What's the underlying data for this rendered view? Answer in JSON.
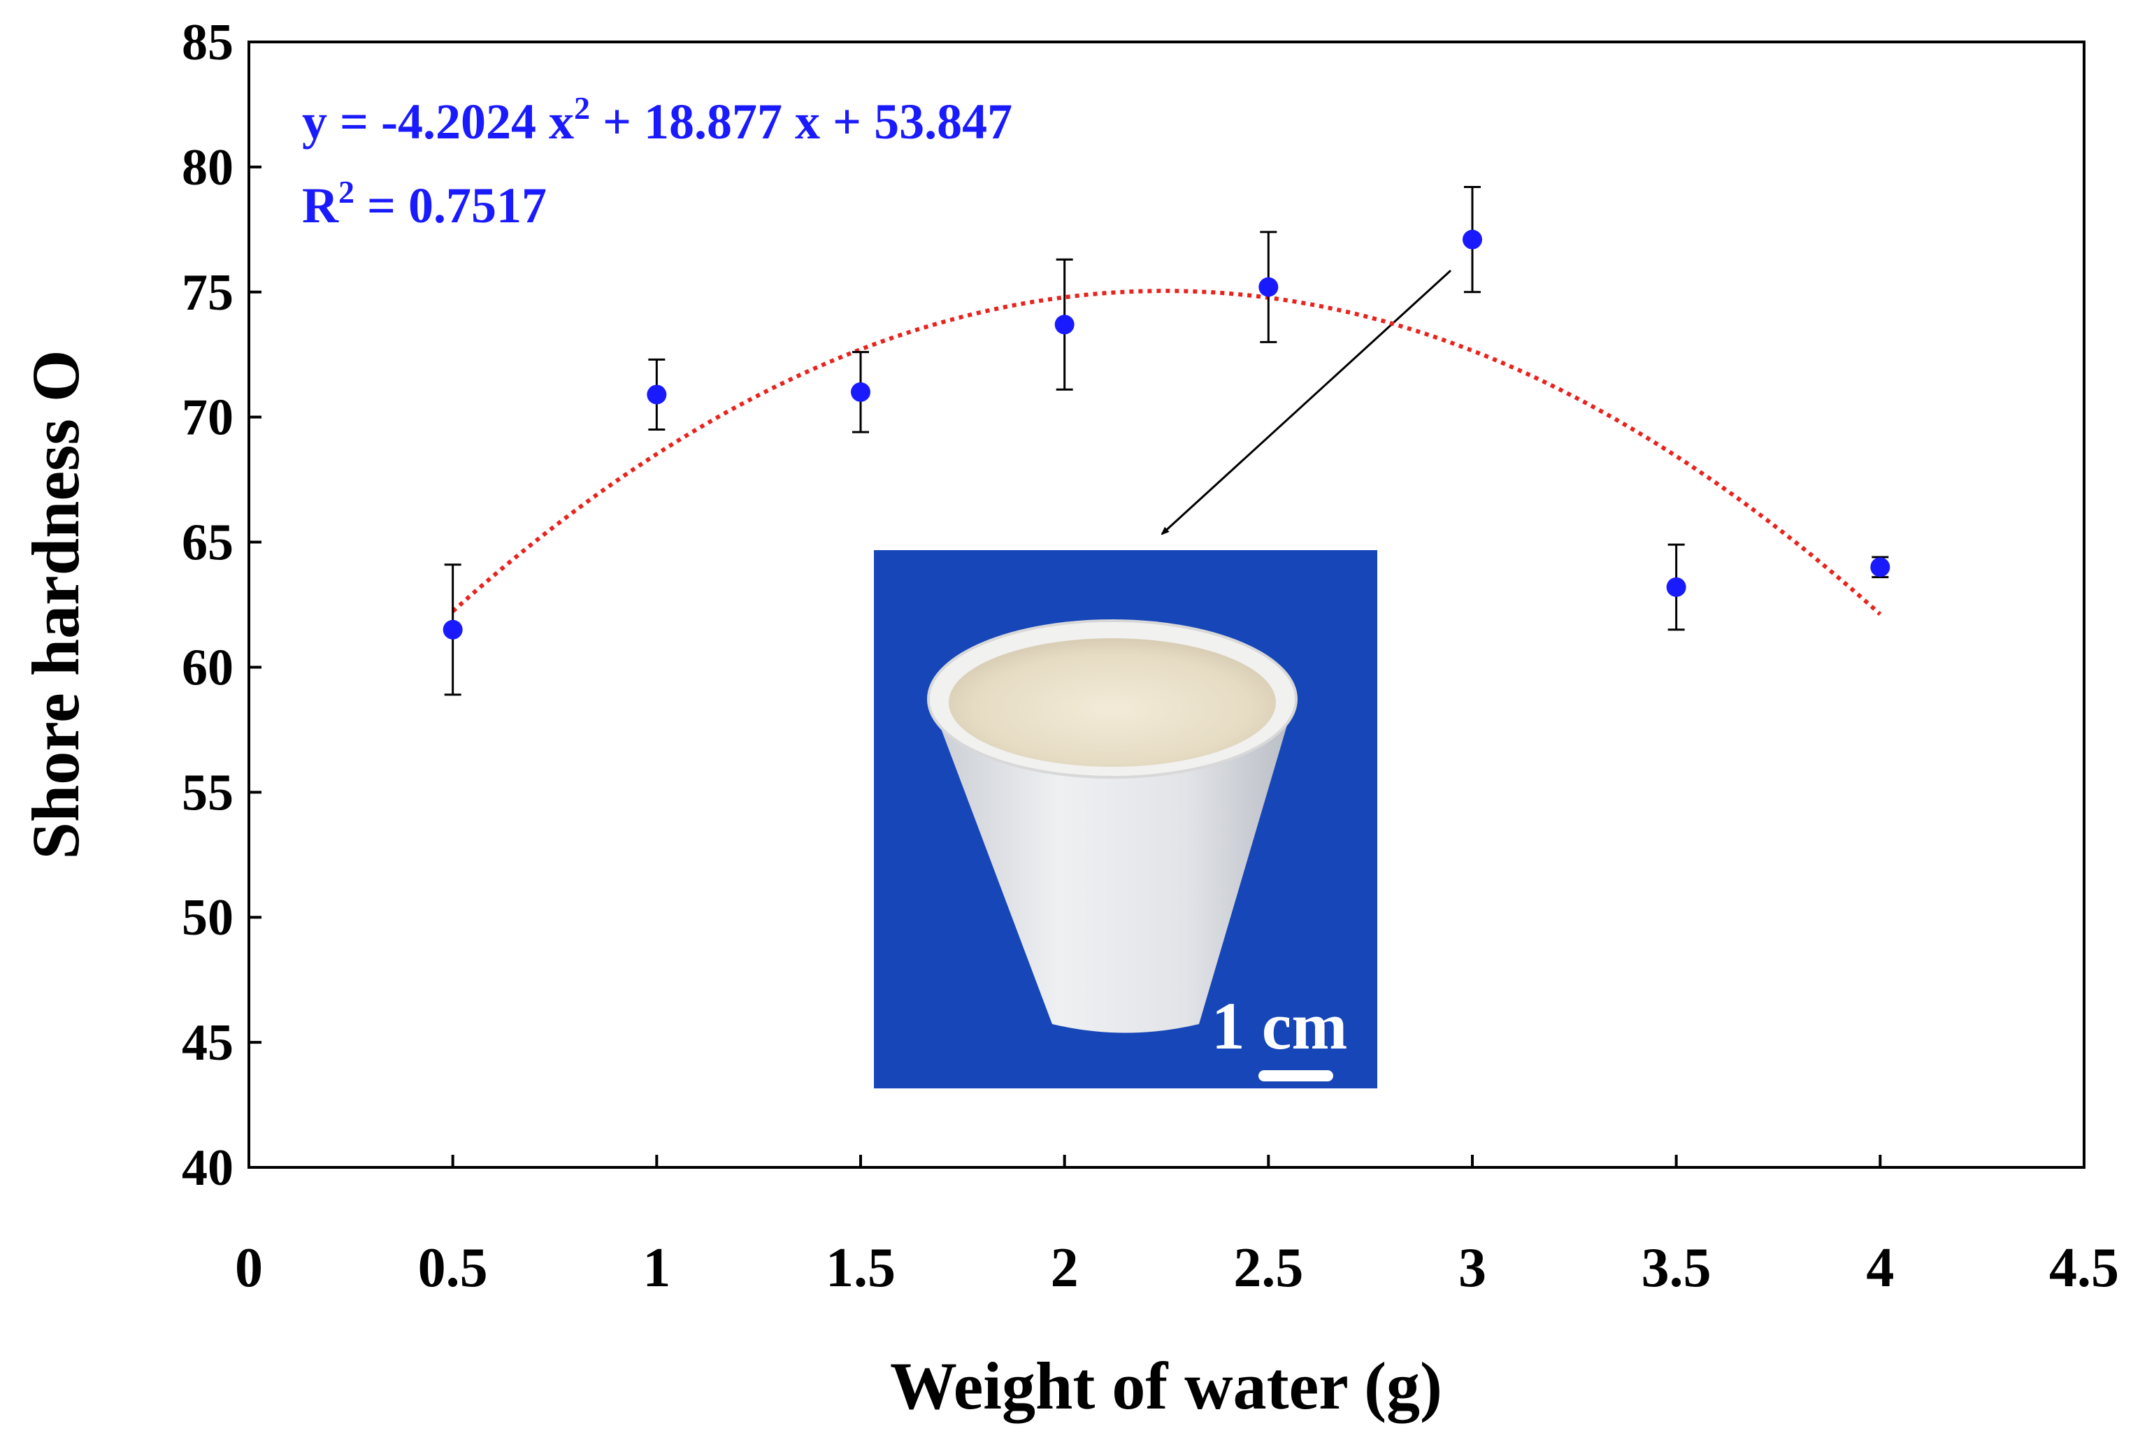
{
  "chart_data": {
    "type": "scatter",
    "title": "",
    "xlabel": "Weight of water (g)",
    "ylabel": "Shore hardness O",
    "xlim": [
      0,
      4.5
    ],
    "ylim": [
      40,
      85
    ],
    "x_ticks": [
      "0",
      "0.5",
      "1",
      "1.5",
      "2",
      "2.5",
      "3",
      "3.5",
      "4",
      "4.5"
    ],
    "y_ticks": [
      "40",
      "45",
      "50",
      "55",
      "60",
      "65",
      "70",
      "75",
      "80",
      "85"
    ],
    "series": [
      {
        "name": "Shore hardness",
        "x": [
          0.5,
          1,
          1.5,
          2,
          2.5,
          3,
          3.5,
          4
        ],
        "y": [
          61.5,
          70.9,
          71.0,
          73.7,
          75.2,
          77.1,
          63.2,
          64.0
        ],
        "y_err": [
          2.6,
          1.4,
          1.6,
          2.6,
          2.2,
          2.1,
          1.7,
          0.4
        ],
        "color": "#1a1aff"
      }
    ],
    "trendline": {
      "type": "polynomial",
      "x_range": [
        0.5,
        4
      ],
      "coefficients": [
        -4.2024,
        18.877,
        53.847
      ],
      "color": "#e8231d",
      "equation": "y = -4.2024 x",
      "equation_exp": "2",
      "equation_rest": " + 18.877 x + 53.847",
      "r2_prefix": "R",
      "r2_exp": "2",
      "r2_rest": " = 0.7517"
    },
    "annotations": [
      {
        "type": "arrow",
        "from_point_x": 3,
        "to": "inset-photo"
      }
    ],
    "inset": {
      "description": "photograph of a white conical cup on blue background",
      "scale_bar_label": "1 cm",
      "background_color": "#1646b8"
    }
  }
}
